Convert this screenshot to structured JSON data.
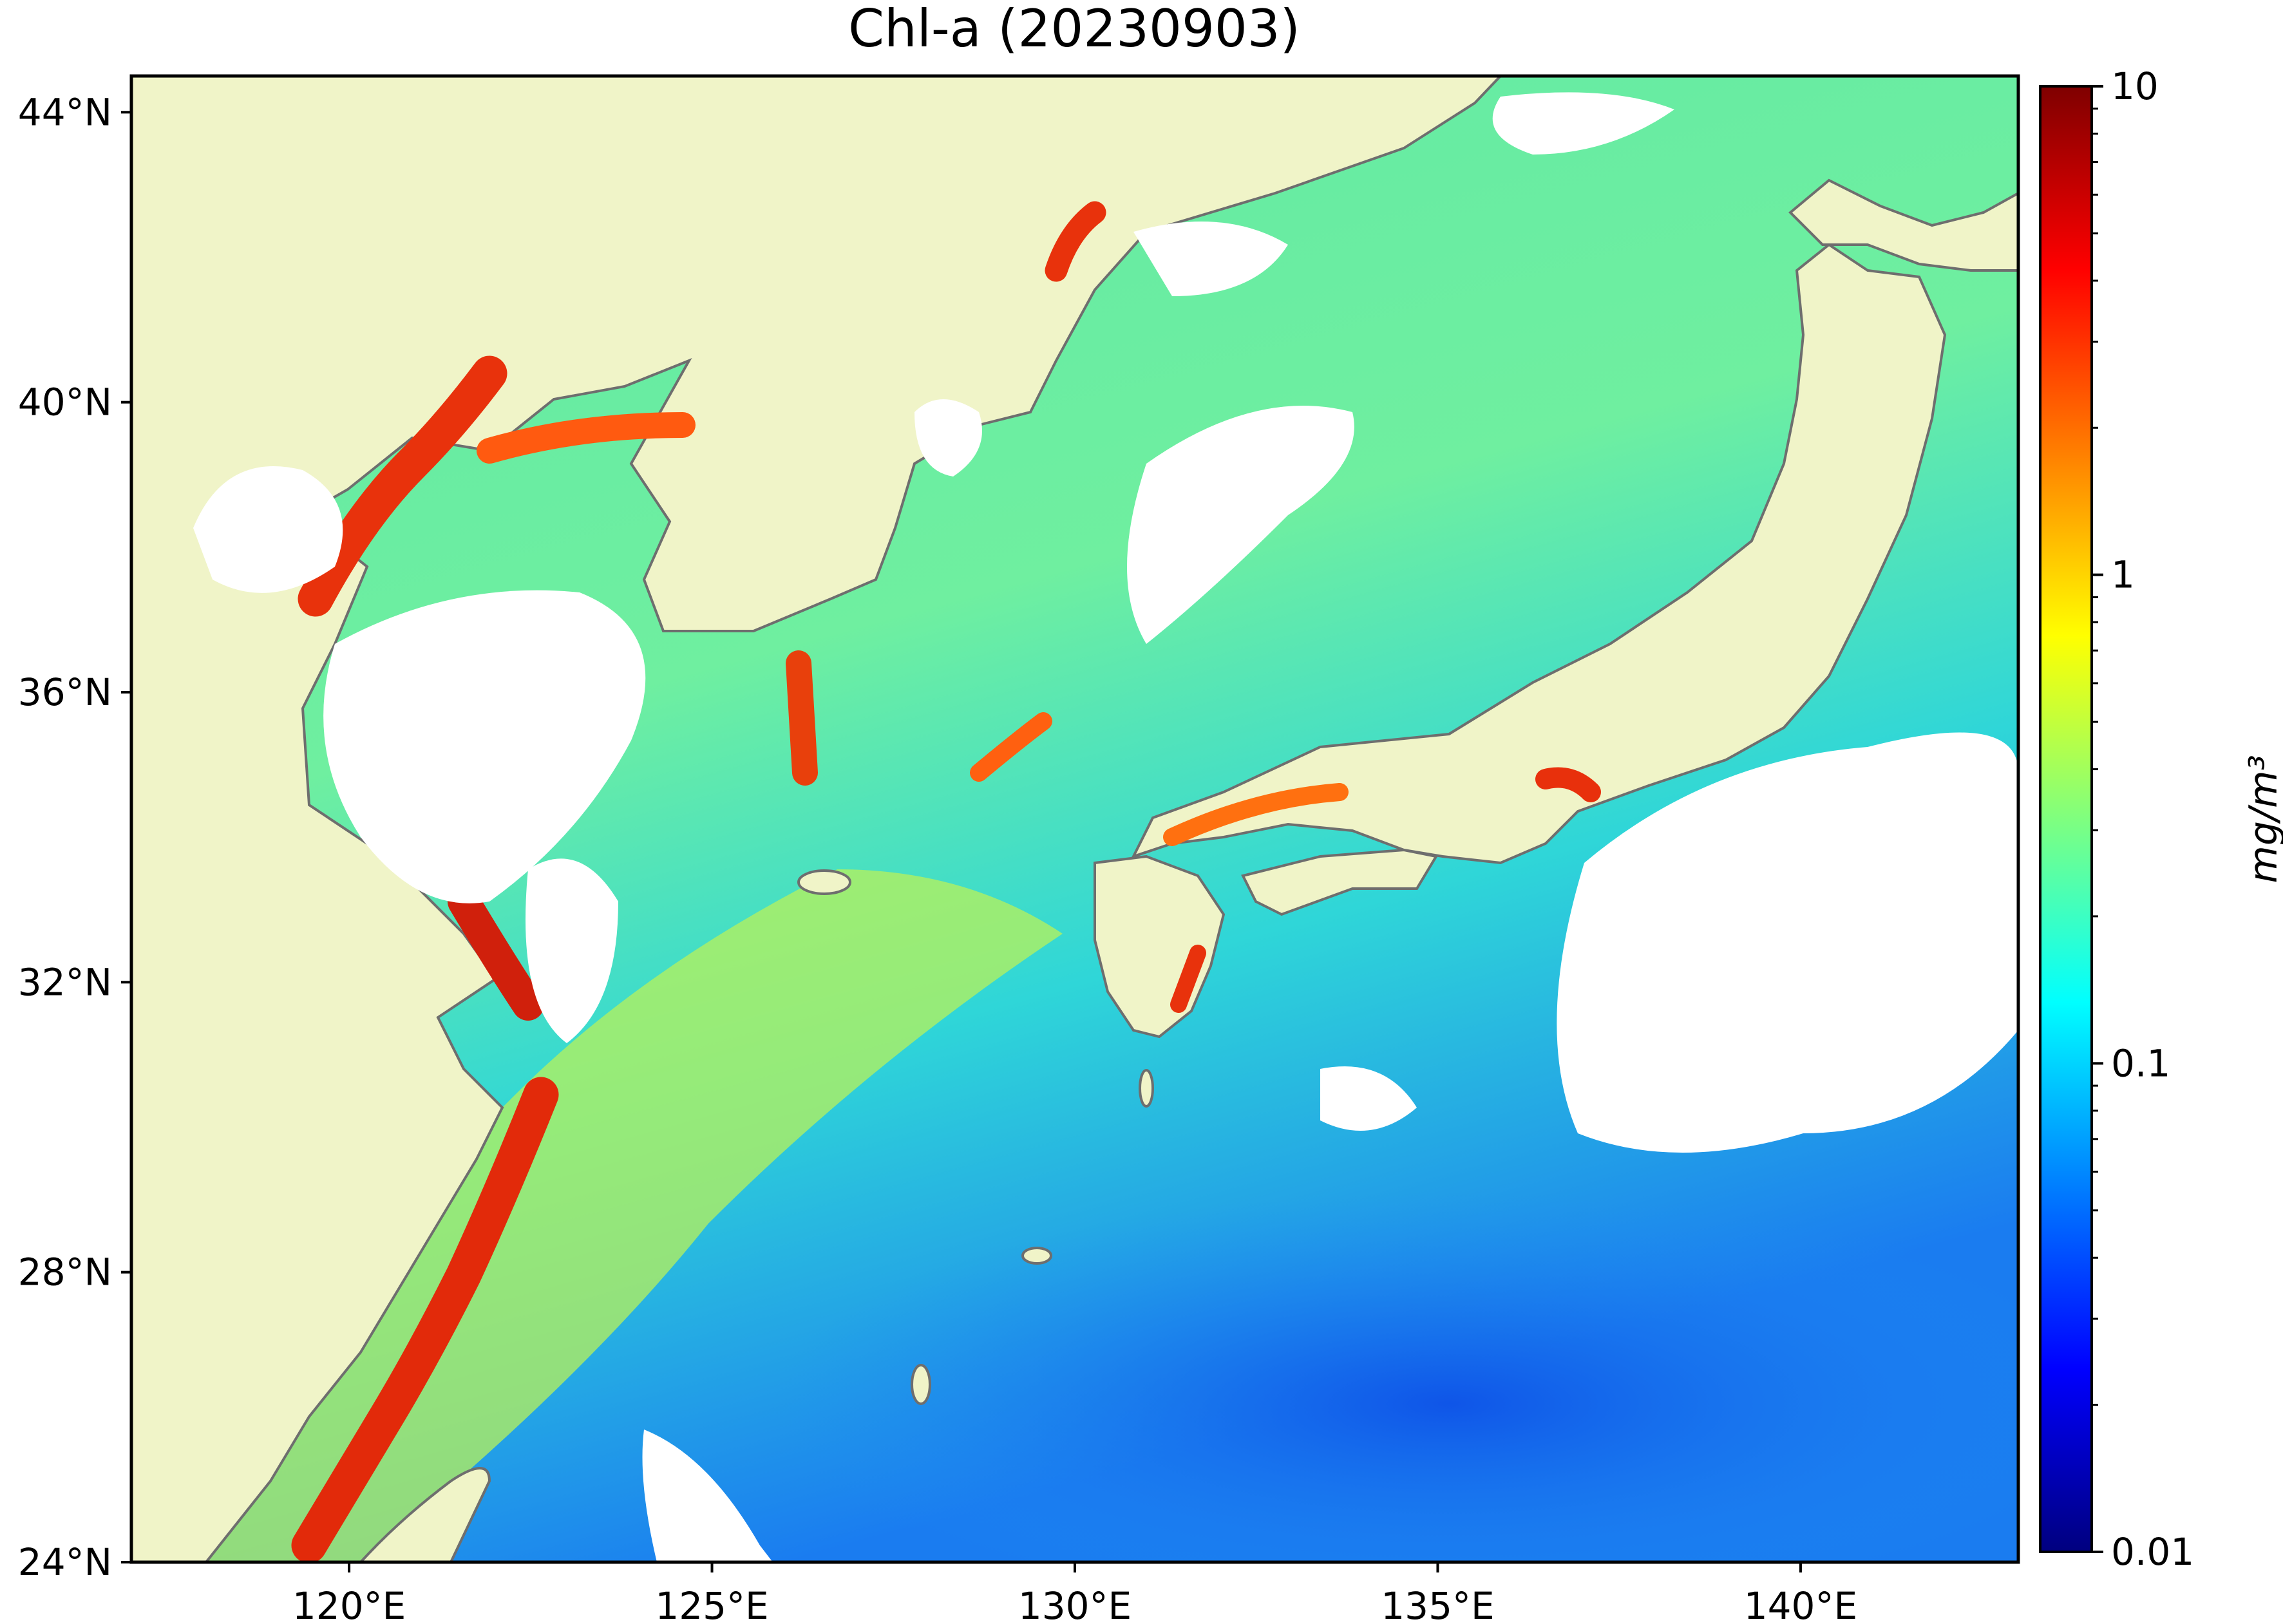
{
  "title": "Chl-a (20230903)",
  "map": {
    "lon_range": [
      117,
      143
    ],
    "lat_range": [
      24,
      44.5
    ],
    "lon_ticks": [
      {
        "value": 120,
        "label": "120°E"
      },
      {
        "value": 125,
        "label": "125°E"
      },
      {
        "value": 130,
        "label": "130°E"
      },
      {
        "value": 135,
        "label": "135°E"
      },
      {
        "value": 140,
        "label": "140°E"
      }
    ],
    "lat_ticks": [
      {
        "value": 24,
        "label": "24°N"
      },
      {
        "value": 28,
        "label": "28°N"
      },
      {
        "value": 32,
        "label": "32°N"
      },
      {
        "value": 36,
        "label": "36°N"
      },
      {
        "value": 40,
        "label": "40°N"
      },
      {
        "value": 44,
        "label": "44°N"
      }
    ],
    "land_color": "#f0f4c8",
    "nodata_color": "#ffffff",
    "coastline_color": "#6e6e6e"
  },
  "colorbar": {
    "scale": "log",
    "min": 0.01,
    "max": 10,
    "colormap": "jet",
    "unit_label": "mg/m³",
    "ticks": [
      {
        "value": 0.01,
        "label": "0.01"
      },
      {
        "value": 0.1,
        "label": "0.1"
      },
      {
        "value": 1,
        "label": "1"
      },
      {
        "value": 10,
        "label": "10"
      }
    ],
    "jet_stops": [
      "#00007f",
      "#0000ff",
      "#007fff",
      "#00ffff",
      "#7fff7f",
      "#ffff00",
      "#ff7f00",
      "#ff0000",
      "#7f0000"
    ]
  }
}
